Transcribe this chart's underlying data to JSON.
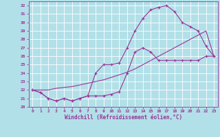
{
  "xlabel": "Windchill (Refroidissement éolien,°C)",
  "bg_color": "#b2e0e8",
  "grid_color": "#ffffff",
  "line_color": "#993399",
  "xlim": [
    -0.5,
    23.5
  ],
  "ylim": [
    20,
    32.5
  ],
  "xticks": [
    0,
    1,
    2,
    3,
    4,
    5,
    6,
    7,
    8,
    9,
    10,
    11,
    12,
    13,
    14,
    15,
    16,
    17,
    18,
    19,
    20,
    21,
    22,
    23
  ],
  "yticks": [
    20,
    21,
    22,
    23,
    24,
    25,
    26,
    27,
    28,
    29,
    30,
    31,
    32
  ],
  "series1_x": [
    0,
    1,
    2,
    3,
    4,
    5,
    6,
    7,
    8,
    9,
    10,
    11,
    12,
    13,
    14,
    15,
    16,
    17,
    18,
    19,
    20,
    21,
    22,
    23
  ],
  "series1_y": [
    22.0,
    21.7,
    21.0,
    20.7,
    21.0,
    20.7,
    21.0,
    21.3,
    21.3,
    21.3,
    21.5,
    21.8,
    24.0,
    26.5,
    27.0,
    26.5,
    25.5,
    25.5,
    25.5,
    25.5,
    25.5,
    25.5,
    26.0,
    26.0
  ],
  "series2_x": [
    0,
    1,
    2,
    3,
    4,
    5,
    6,
    7,
    8,
    9,
    10,
    11,
    12,
    13,
    14,
    15,
    16,
    17,
    18,
    19,
    20,
    21,
    22,
    23
  ],
  "series2_y": [
    22.0,
    21.7,
    21.0,
    20.7,
    21.0,
    20.7,
    21.0,
    21.3,
    24.0,
    25.0,
    25.0,
    25.2,
    27.0,
    29.0,
    30.5,
    31.5,
    31.8,
    32.0,
    31.3,
    30.0,
    29.5,
    29.0,
    27.2,
    26.0
  ],
  "series3_x": [
    0,
    1,
    2,
    3,
    4,
    5,
    6,
    7,
    8,
    9,
    10,
    11,
    12,
    13,
    14,
    15,
    16,
    17,
    18,
    19,
    20,
    21,
    22,
    23
  ],
  "series3_y": [
    22.0,
    22.0,
    22.0,
    22.2,
    22.3,
    22.4,
    22.6,
    22.8,
    23.0,
    23.2,
    23.5,
    23.8,
    24.1,
    24.5,
    25.0,
    25.5,
    26.0,
    26.5,
    27.0,
    27.5,
    28.0,
    28.5,
    29.0,
    26.0
  ]
}
